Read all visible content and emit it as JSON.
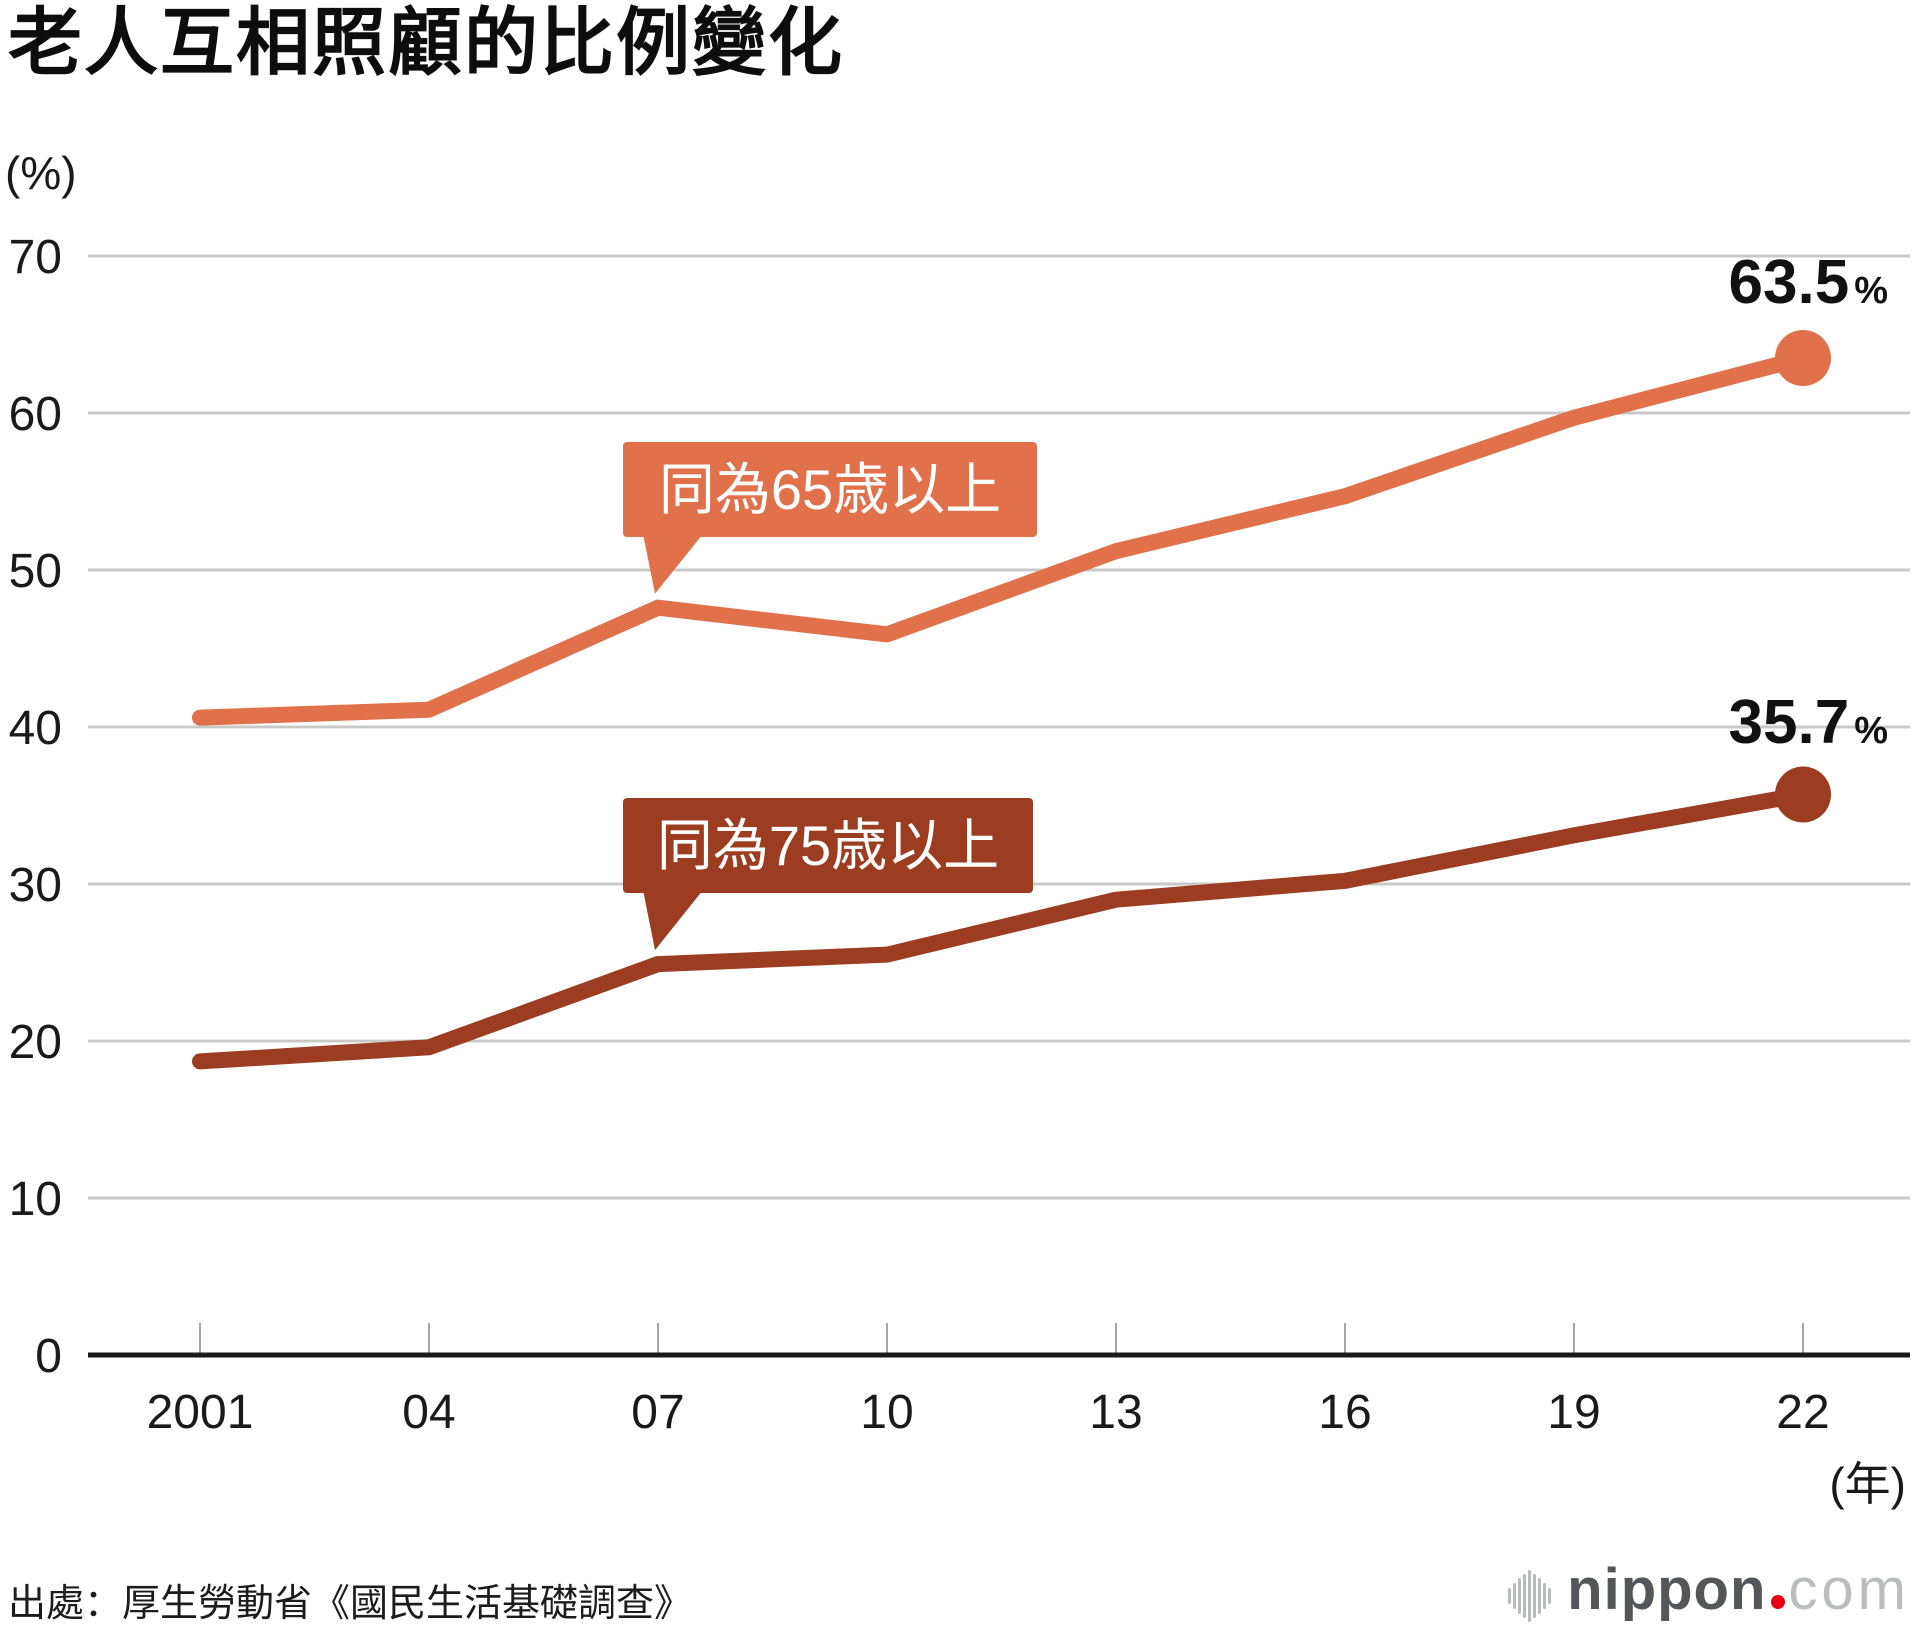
{
  "title": "老人互相照顧的比例變化",
  "y_axis_unit": "(%)",
  "x_axis_unit": "(年)",
  "source": "出處：厚生勞動省《國民生活基礎調查》",
  "logo": {
    "text_bold": "nippon",
    "text_light": "com",
    "dot_color": "#e60012"
  },
  "chart_data": {
    "type": "line",
    "title": "老人互相照顧的比例變化",
    "x_categories": [
      "2001",
      "04",
      "07",
      "10",
      "13",
      "16",
      "19",
      "22"
    ],
    "y_ticks": [
      0,
      10,
      20,
      30,
      40,
      50,
      60,
      70
    ],
    "ylim": [
      0,
      70
    ],
    "grid": true,
    "legend_position": "inline-callouts",
    "series": [
      {
        "name": "同為65歳以上",
        "color": "#e0714a",
        "values": [
          40.6,
          41.1,
          47.6,
          45.9,
          51.2,
          54.7,
          59.7,
          63.5
        ],
        "end_label": {
          "value": "63.5",
          "unit": "%"
        }
      },
      {
        "name": "同為75歳以上",
        "color": "#9c3d21",
        "values": [
          18.7,
          19.6,
          24.9,
          25.5,
          29.0,
          30.2,
          33.1,
          35.7
        ],
        "end_label": {
          "value": "35.7",
          "unit": "%"
        }
      }
    ]
  }
}
